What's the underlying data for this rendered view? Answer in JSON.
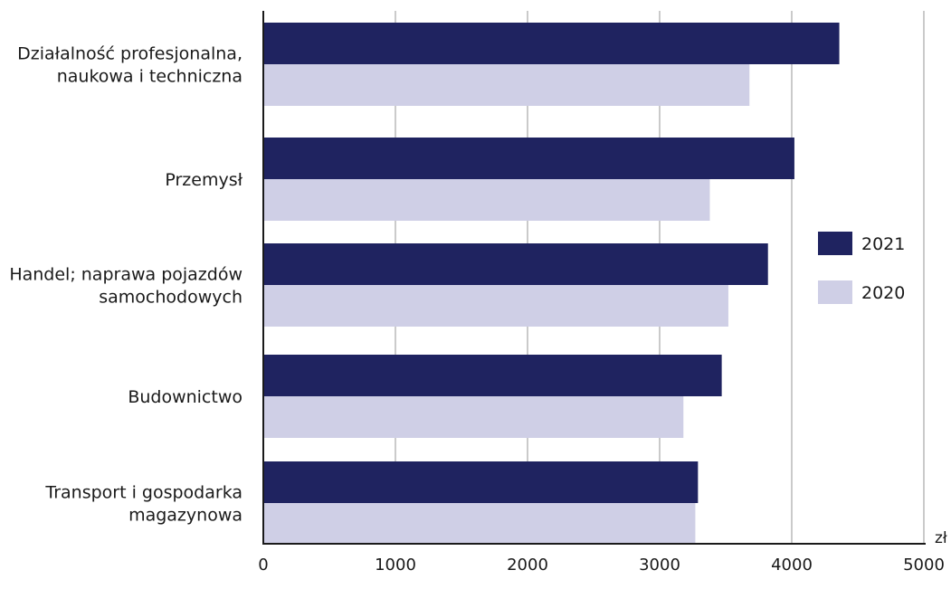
{
  "chart_data": {
    "type": "bar",
    "orientation": "horizontal",
    "categories": [
      [
        "Działalność profesjonalna,",
        "naukowa i techniczna"
      ],
      [
        "Przemysł"
      ],
      [
        "Handel; naprawa pojazdów",
        "samochodowych"
      ],
      [
        "Budownictwo"
      ],
      [
        "Transport i gospodarka",
        "magazynowa"
      ]
    ],
    "series": [
      {
        "name": "2021",
        "color": "#1f2360",
        "values": [
          4360,
          4020,
          3820,
          3470,
          3290
        ]
      },
      {
        "name": "2020",
        "color": "#cfcfe6",
        "values": [
          3680,
          3380,
          3520,
          3180,
          3270
        ]
      }
    ],
    "xlim": [
      0,
      5000
    ],
    "xticks": [
      0,
      1000,
      2000,
      3000,
      4000,
      5000
    ],
    "unit": "zł",
    "grid": true,
    "legend_position": "right"
  },
  "colors": {
    "grid": "#a8a8a8",
    "axis": "#1a1a1a"
  }
}
